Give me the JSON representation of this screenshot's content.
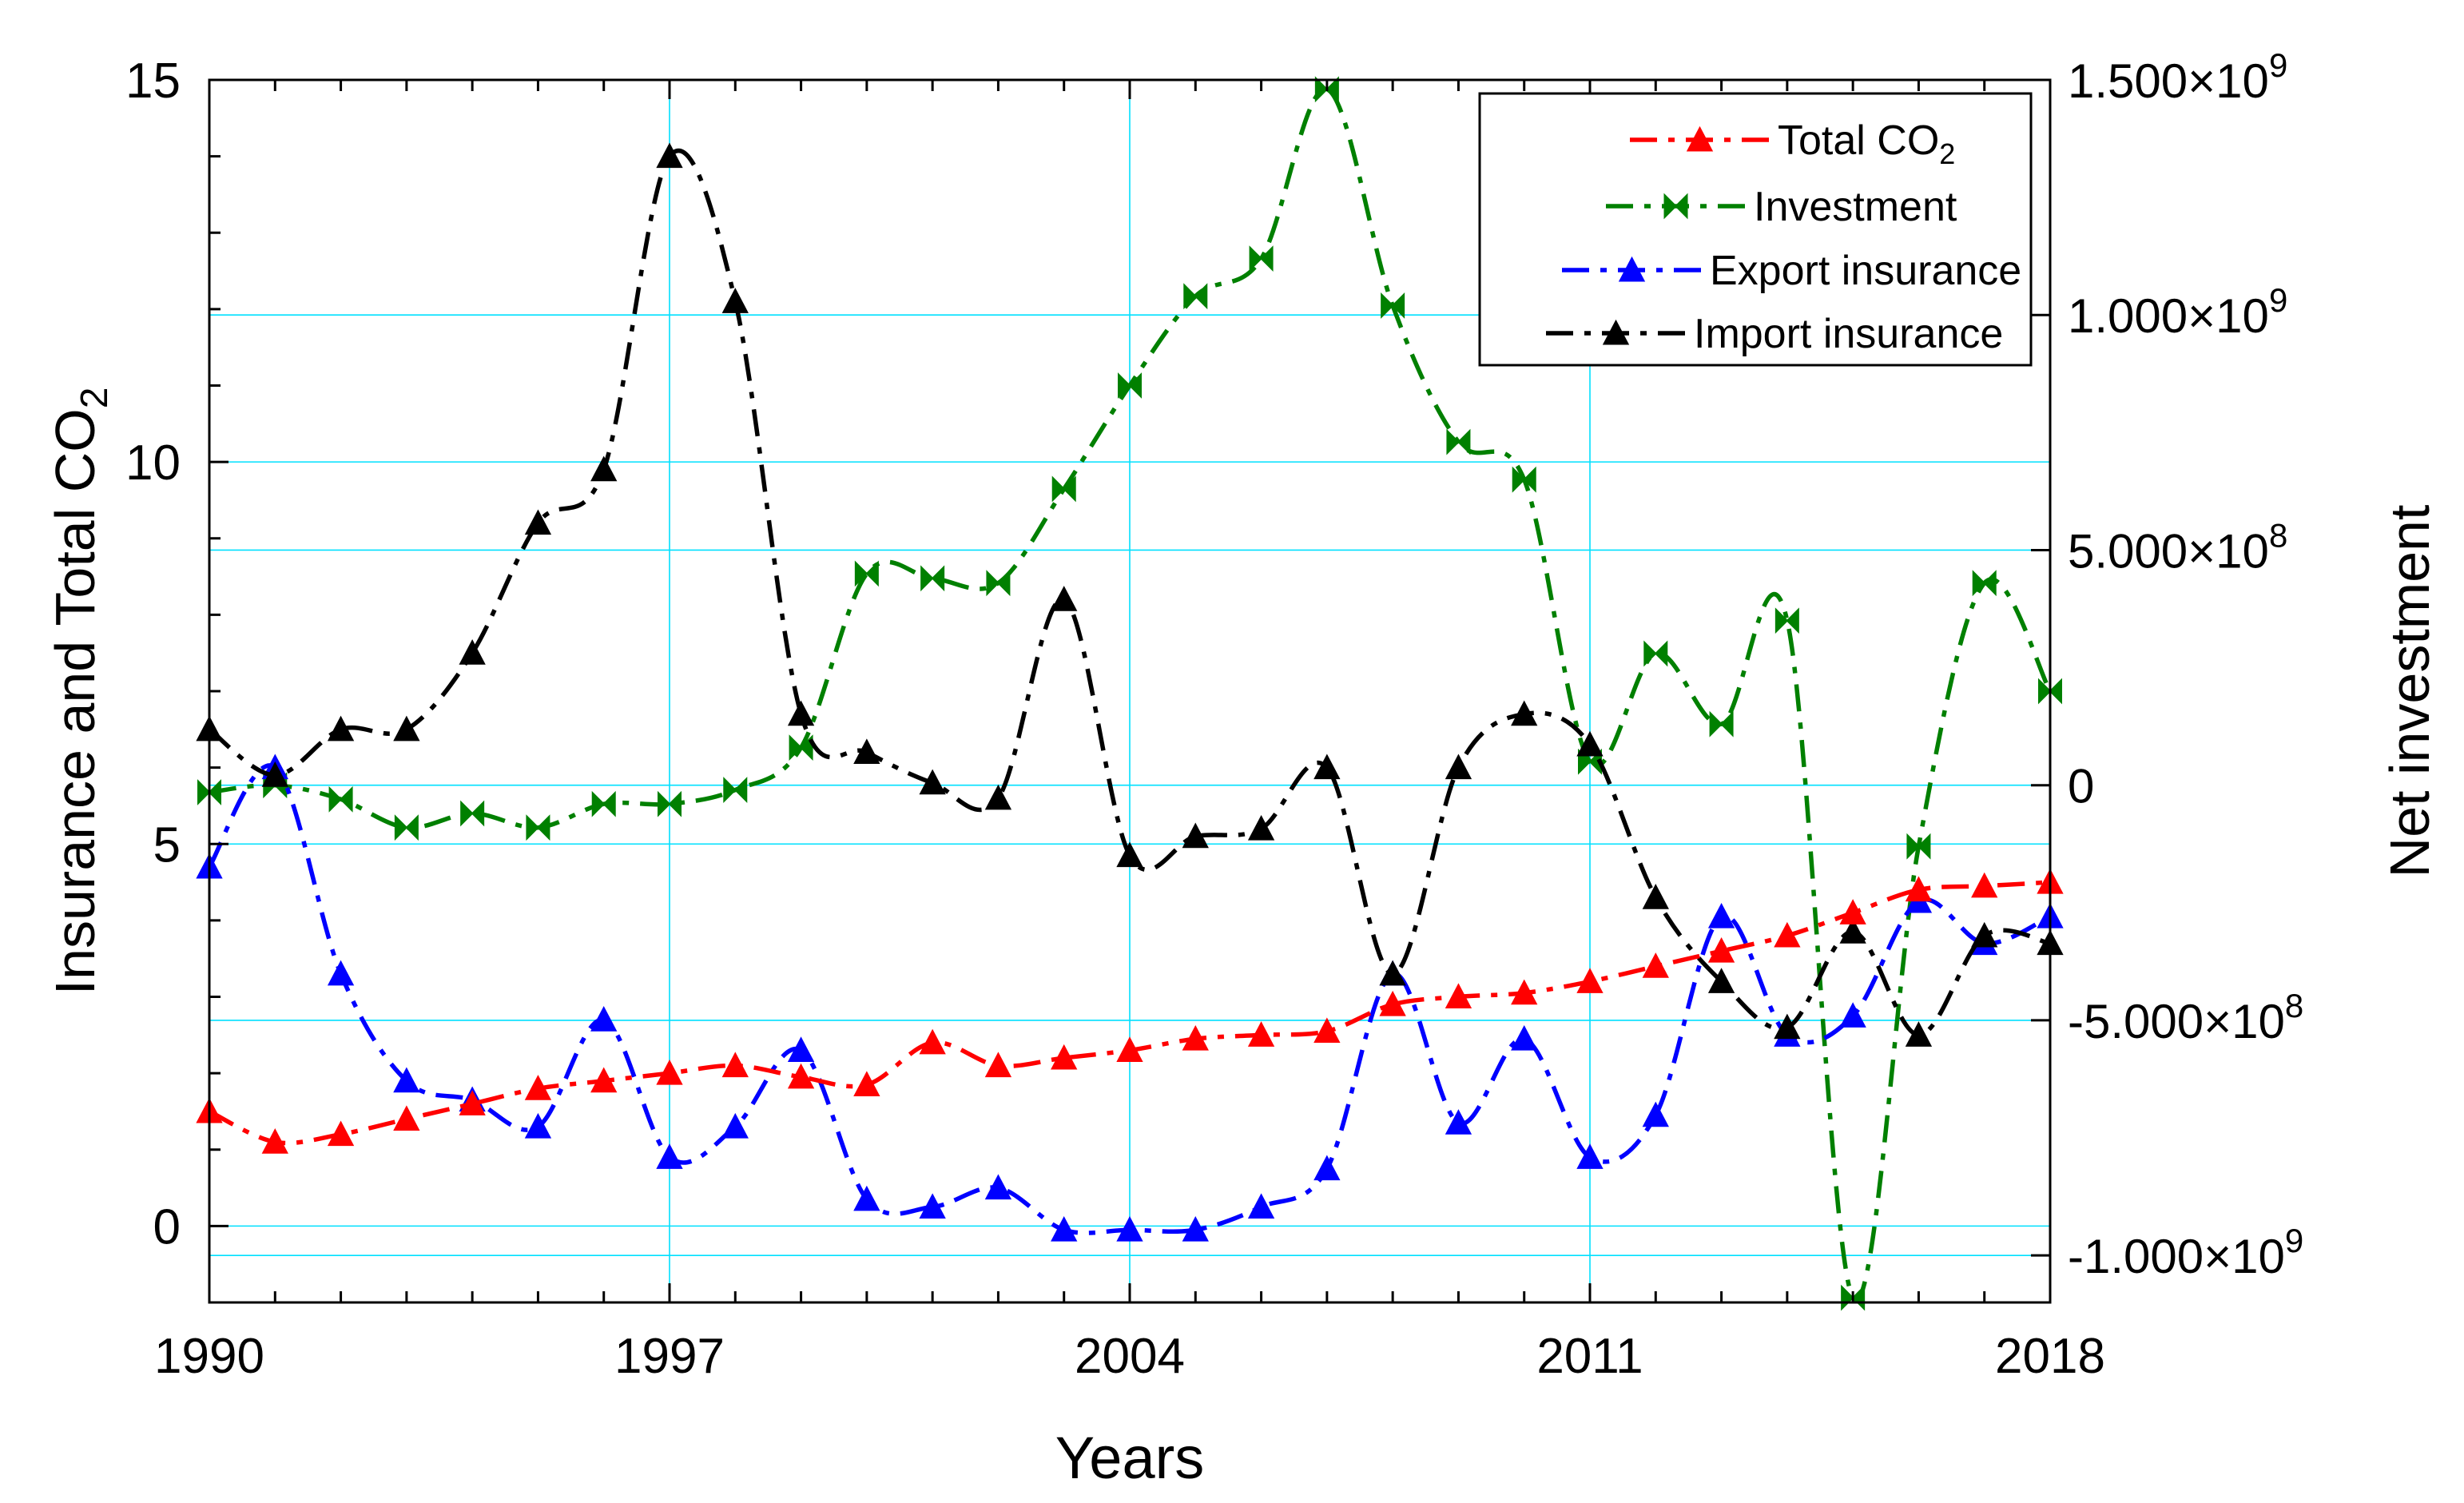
{
  "chart_data": {
    "type": "line",
    "x": [
      1990,
      1991,
      1992,
      1993,
      1994,
      1995,
      1996,
      1997,
      1998,
      1999,
      2000,
      2001,
      2002,
      2003,
      2004,
      2005,
      2006,
      2007,
      2008,
      2009,
      2010,
      2011,
      2012,
      2013,
      2014,
      2015,
      2016,
      2017,
      2018
    ],
    "xlabel": "Years",
    "ylabel_left": {
      "main": "Insurance and Total CO",
      "sub": "2"
    },
    "ylabel_right": "Net investment",
    "xlim": [
      1990,
      2018
    ],
    "ylim_left": [
      -1,
      15
    ],
    "ylim_right": [
      -1100000000.0,
      1500000000.0
    ],
    "x_ticks": [
      "1990",
      "1997",
      "2004",
      "2011",
      "2018"
    ],
    "y_ticks_left": [
      "15",
      "10",
      "5",
      "0"
    ],
    "y_ticks_right": [
      {
        "mant": "1.500×10",
        "exp": "9"
      },
      {
        "mant": "1.000×10",
        "exp": "9"
      },
      {
        "mant": "5.000×10",
        "exp": "8"
      },
      {
        "mant": "0",
        "exp": ""
      },
      {
        "mant": "-5.000×10",
        "exp": "8"
      },
      {
        "mant": "-1.000×10",
        "exp": "9"
      }
    ],
    "grid": true,
    "legend_position": "top-right",
    "series": [
      {
        "name": "Total CO",
        "name_sub": "2",
        "axis": "left",
        "color": "#ff0000",
        "marker": "triangle",
        "dash": "34 14 8 14",
        "values": [
          1.5,
          1.1,
          1.2,
          1.4,
          1.6,
          1.8,
          1.9,
          2.0,
          2.1,
          1.95,
          1.85,
          2.4,
          2.1,
          2.2,
          2.3,
          2.45,
          2.5,
          2.55,
          2.9,
          3.0,
          3.05,
          3.2,
          3.4,
          3.6,
          3.8,
          4.1,
          4.4,
          4.45,
          4.5
        ]
      },
      {
        "name": "Investment",
        "axis": "right",
        "color": "#008000",
        "marker": "bowtie",
        "dash": "34 14 8 14",
        "values": [
          -15000000,
          0,
          -30000000,
          -90000000,
          -60000000,
          -90000000,
          -40000000,
          -40000000,
          -10000000,
          80000000,
          450000000,
          440000000,
          430000000,
          630000000,
          850000000,
          1040000000,
          1120000000,
          1480000000,
          1020000000,
          730000000,
          650000000,
          50000000,
          280000000,
          130000000,
          350000000,
          -1090000000,
          -130000000,
          430000000,
          200000000
        ]
      },
      {
        "name": "Export insurance",
        "axis": "left",
        "color": "#0000ff",
        "marker": "triangle",
        "dash": "34 14 8 14",
        "values": [
          4.7,
          6.0,
          3.3,
          1.9,
          1.65,
          1.3,
          2.7,
          0.9,
          1.3,
          2.3,
          0.35,
          0.25,
          0.5,
          -0.05,
          -0.05,
          -0.05,
          0.25,
          0.75,
          3.3,
          1.35,
          2.45,
          0.9,
          1.45,
          4.05,
          2.5,
          2.75,
          4.25,
          3.7,
          4.05
        ]
      },
      {
        "name": "Import insurance",
        "axis": "left",
        "color": "#000000",
        "marker": "triangle",
        "dash": "34 14 8 14",
        "values": [
          6.5,
          5.9,
          6.5,
          6.5,
          7.5,
          9.2,
          9.9,
          14.0,
          12.1,
          6.7,
          6.2,
          5.8,
          5.6,
          8.2,
          4.85,
          5.1,
          5.2,
          6.0,
          3.3,
          6.0,
          6.7,
          6.3,
          4.3,
          3.2,
          2.6,
          3.85,
          2.5,
          3.8,
          3.7
        ]
      }
    ]
  }
}
